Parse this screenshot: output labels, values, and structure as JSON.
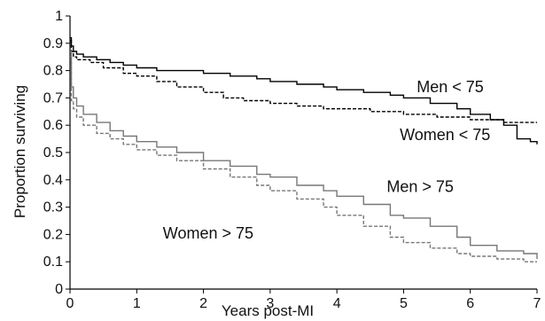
{
  "chart_data": {
    "type": "line",
    "title": "",
    "xlabel": "Years post-MI",
    "ylabel": "Proportion surviving",
    "xlim": [
      0,
      7
    ],
    "ylim": [
      0,
      1
    ],
    "x_ticks": [
      "0",
      "1",
      "2",
      "3",
      "4",
      "5",
      "6",
      "7"
    ],
    "y_ticks": [
      "0",
      "0.1",
      "0.2",
      "0.3",
      "0.4",
      "0.5",
      "0.6",
      "0.7",
      "0.8",
      "0.9",
      "1"
    ],
    "grid": false,
    "step": true,
    "series": [
      {
        "name": "Men < 75",
        "color": "#000000",
        "dash": "solid",
        "label_at": [
          6.2,
          0.72
        ],
        "x": [
          0,
          0.02,
          0.05,
          0.1,
          0.2,
          0.4,
          0.6,
          0.8,
          1.0,
          1.3,
          1.6,
          2.0,
          2.4,
          2.8,
          3.0,
          3.4,
          3.8,
          4.0,
          4.4,
          4.8,
          5.0,
          5.4,
          5.8,
          6.0,
          6.3,
          6.5,
          6.7,
          6.9,
          7.0
        ],
        "y": [
          0.92,
          0.89,
          0.87,
          0.86,
          0.85,
          0.84,
          0.83,
          0.82,
          0.81,
          0.8,
          0.8,
          0.79,
          0.78,
          0.77,
          0.76,
          0.75,
          0.74,
          0.73,
          0.72,
          0.71,
          0.7,
          0.68,
          0.66,
          0.64,
          0.62,
          0.6,
          0.55,
          0.54,
          0.53
        ]
      },
      {
        "name": "Women < 75",
        "color": "#000000",
        "dash": "4,2",
        "label_at": [
          6.3,
          0.545
        ],
        "x": [
          0,
          0.02,
          0.05,
          0.1,
          0.3,
          0.5,
          0.8,
          1.0,
          1.3,
          1.6,
          2.0,
          2.3,
          2.6,
          3.0,
          3.4,
          3.8,
          4.0,
          4.5,
          5.0,
          5.5,
          6.0,
          6.5,
          7.0
        ],
        "y": [
          0.91,
          0.87,
          0.85,
          0.84,
          0.83,
          0.81,
          0.79,
          0.78,
          0.76,
          0.74,
          0.72,
          0.7,
          0.69,
          0.68,
          0.67,
          0.66,
          0.66,
          0.65,
          0.64,
          0.63,
          0.62,
          0.61,
          0.61
        ]
      },
      {
        "name": "Men > 75",
        "color": "#777777",
        "dash": "solid",
        "label_at": [
          5.75,
          0.355
        ],
        "x": [
          0,
          0.02,
          0.05,
          0.1,
          0.2,
          0.4,
          0.6,
          0.8,
          1.0,
          1.3,
          1.6,
          2.0,
          2.4,
          2.8,
          3.0,
          3.4,
          3.8,
          4.0,
          4.4,
          4.8,
          5.0,
          5.4,
          5.8,
          6.0,
          6.4,
          6.8,
          7.0
        ],
        "y": [
          0.87,
          0.74,
          0.7,
          0.67,
          0.64,
          0.61,
          0.58,
          0.56,
          0.54,
          0.52,
          0.5,
          0.47,
          0.45,
          0.42,
          0.41,
          0.38,
          0.36,
          0.34,
          0.31,
          0.27,
          0.26,
          0.23,
          0.19,
          0.16,
          0.14,
          0.13,
          0.11
        ]
      },
      {
        "name": "Women > 75",
        "color": "#777777",
        "dash": "4,2",
        "label_at": [
          2.75,
          0.185
        ],
        "x": [
          0,
          0.02,
          0.05,
          0.1,
          0.2,
          0.4,
          0.6,
          0.8,
          1.0,
          1.3,
          1.6,
          2.0,
          2.4,
          2.8,
          3.0,
          3.4,
          3.8,
          4.0,
          4.4,
          4.8,
          5.0,
          5.4,
          5.8,
          6.0,
          6.4,
          6.8,
          7.0
        ],
        "y": [
          0.85,
          0.69,
          0.66,
          0.63,
          0.6,
          0.57,
          0.55,
          0.53,
          0.51,
          0.49,
          0.47,
          0.44,
          0.41,
          0.38,
          0.36,
          0.33,
          0.3,
          0.27,
          0.23,
          0.19,
          0.17,
          0.15,
          0.13,
          0.12,
          0.11,
          0.1,
          0.1
        ]
      }
    ]
  }
}
